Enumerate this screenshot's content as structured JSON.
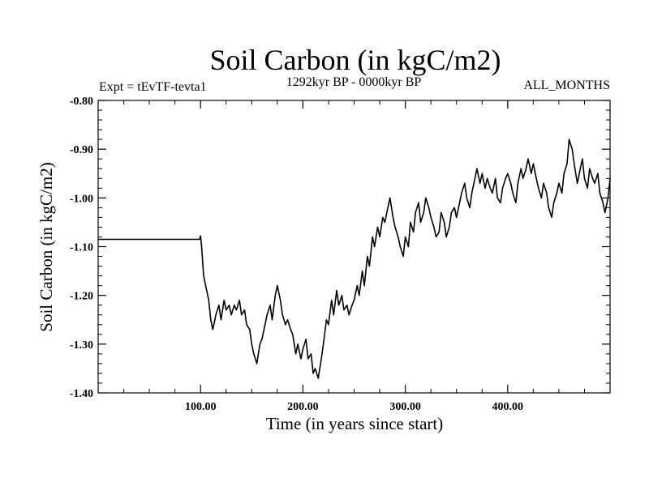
{
  "chart_data": {
    "type": "line",
    "title": "Soil Carbon (in kgC/m2)",
    "subtitle_left": "Expt = tEvTF-tevta1",
    "subtitle_center": "1292kyr BP - 0000kyr BP",
    "subtitle_right": "ALL_MONTHS",
    "xlabel": "Time (in years since start)",
    "ylabel": "Soil Carbon (in kgC/m2)",
    "xlim": [
      0,
      500
    ],
    "ylim": [
      -1.4,
      -0.8
    ],
    "xticks": [
      100,
      200,
      300,
      400
    ],
    "xtick_labels": [
      "100.00",
      "200.00",
      "300.00",
      "400.00"
    ],
    "yticks": [
      -1.4,
      -1.3,
      -1.2,
      -1.1,
      -1.0,
      -0.9,
      -0.8
    ],
    "ytick_labels": [
      "-1.40",
      "-1.30",
      "-1.20",
      "-1.10",
      "-1.00",
      "-0.90",
      "-0.80"
    ],
    "line_color": "#000000",
    "series": [
      {
        "name": "Soil Carbon",
        "x": [
          0,
          99,
          100,
          101,
          103,
          105,
          108,
          110,
          112,
          115,
          118,
          120,
          123,
          125,
          128,
          130,
          133,
          135,
          138,
          140,
          143,
          145,
          148,
          150,
          152,
          155,
          158,
          160,
          163,
          165,
          168,
          170,
          173,
          175,
          178,
          180,
          183,
          185,
          188,
          190,
          193,
          195,
          198,
          200,
          203,
          205,
          208,
          210,
          212,
          215,
          218,
          220,
          223,
          225,
          228,
          230,
          233,
          235,
          238,
          240,
          243,
          245,
          248,
          250,
          253,
          255,
          258,
          260,
          263,
          265,
          268,
          270,
          273,
          275,
          278,
          280,
          283,
          285,
          288,
          290,
          293,
          295,
          298,
          300,
          303,
          305,
          308,
          310,
          313,
          315,
          318,
          320,
          323,
          325,
          328,
          330,
          333,
          335,
          338,
          340,
          343,
          345,
          348,
          350,
          353,
          355,
          358,
          360,
          363,
          365,
          368,
          370,
          373,
          375,
          378,
          380,
          383,
          385,
          388,
          390,
          393,
          395,
          398,
          400,
          403,
          405,
          408,
          410,
          413,
          415,
          418,
          420,
          423,
          425,
          428,
          430,
          433,
          435,
          438,
          440,
          443,
          445,
          448,
          450,
          453,
          455,
          458,
          460,
          463,
          465,
          468,
          470,
          473,
          475,
          478,
          480,
          483,
          485,
          488,
          490,
          493,
          495,
          498,
          500
        ],
        "y": [
          -1.085,
          -1.085,
          -1.078,
          -1.1,
          -1.16,
          -1.18,
          -1.21,
          -1.25,
          -1.27,
          -1.24,
          -1.22,
          -1.25,
          -1.21,
          -1.23,
          -1.22,
          -1.24,
          -1.22,
          -1.23,
          -1.21,
          -1.24,
          -1.23,
          -1.26,
          -1.27,
          -1.3,
          -1.32,
          -1.34,
          -1.3,
          -1.29,
          -1.26,
          -1.24,
          -1.22,
          -1.25,
          -1.2,
          -1.18,
          -1.21,
          -1.24,
          -1.26,
          -1.25,
          -1.27,
          -1.28,
          -1.32,
          -1.3,
          -1.33,
          -1.31,
          -1.29,
          -1.33,
          -1.32,
          -1.36,
          -1.35,
          -1.37,
          -1.33,
          -1.3,
          -1.25,
          -1.26,
          -1.21,
          -1.24,
          -1.19,
          -1.22,
          -1.2,
          -1.23,
          -1.22,
          -1.24,
          -1.22,
          -1.21,
          -1.18,
          -1.2,
          -1.15,
          -1.18,
          -1.12,
          -1.14,
          -1.08,
          -1.1,
          -1.06,
          -1.08,
          -1.04,
          -1.05,
          -1.02,
          -1.0,
          -1.04,
          -1.06,
          -1.08,
          -1.1,
          -1.12,
          -1.08,
          -1.1,
          -1.05,
          -1.07,
          -1.03,
          -1.01,
          -1.05,
          -1.03,
          -1.0,
          -1.02,
          -1.04,
          -1.06,
          -1.08,
          -1.07,
          -1.03,
          -1.05,
          -1.08,
          -1.06,
          -1.03,
          -1.02,
          -1.04,
          -1.01,
          -0.99,
          -0.97,
          -1.0,
          -1.02,
          -0.99,
          -0.96,
          -0.94,
          -0.97,
          -0.95,
          -0.98,
          -0.96,
          -0.98,
          -0.99,
          -0.96,
          -1.0,
          -1.01,
          -0.98,
          -0.96,
          -0.95,
          -0.97,
          -0.99,
          -1.01,
          -0.97,
          -0.94,
          -0.96,
          -0.94,
          -0.92,
          -0.95,
          -0.93,
          -0.96,
          -0.98,
          -1.0,
          -0.97,
          -0.99,
          -1.02,
          -1.04,
          -1.01,
          -0.99,
          -0.97,
          -0.99,
          -0.95,
          -0.93,
          -0.88,
          -0.9,
          -0.93,
          -0.97,
          -0.95,
          -0.92,
          -0.96,
          -0.98,
          -0.94,
          -0.96,
          -0.97,
          -0.95,
          -0.99,
          -1.01,
          -1.03,
          -1.0,
          -0.96
        ]
      }
    ]
  }
}
